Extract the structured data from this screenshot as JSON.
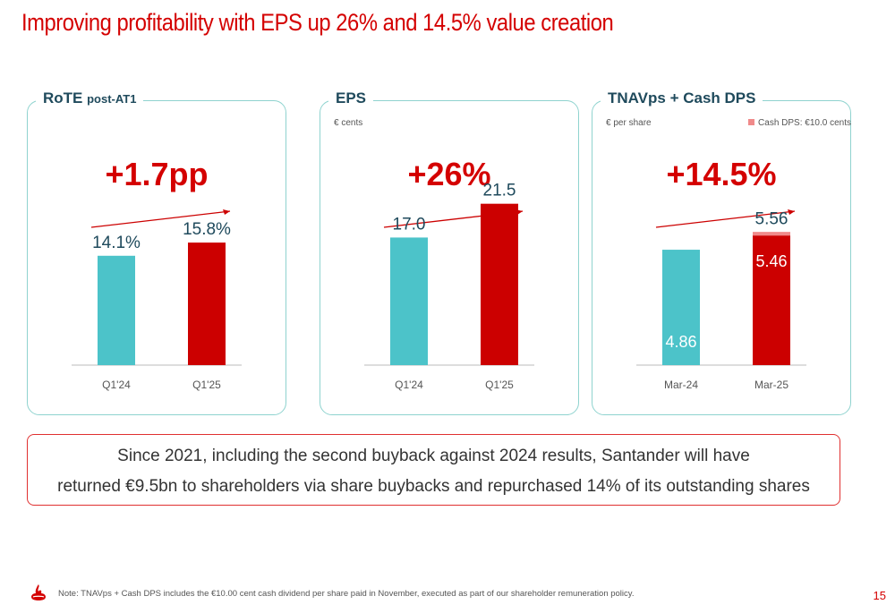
{
  "title": "Improving profitability with EPS up 26% and 14.5% value creation",
  "panels": [
    {
      "title": "RoTE ",
      "title_small": "post-AT1",
      "unit": "",
      "legend": "",
      "growth": "+1.7pp"
    },
    {
      "title": "EPS",
      "title_small": "",
      "unit": "€ cents",
      "legend": "",
      "growth": "+26%"
    },
    {
      "title": "TNAVps + Cash DPS",
      "title_small": "",
      "unit": "€ per share",
      "legend": "Cash DPS: €10.0 cents",
      "growth": "+14.5%"
    }
  ],
  "chart_data": [
    {
      "type": "bar",
      "title": "RoTE post-AT1",
      "categories": [
        "Q1'24",
        "Q1'25"
      ],
      "values": [
        14.1,
        15.8
      ],
      "labels": [
        "14.1%",
        "15.8%"
      ],
      "colors": [
        "#4cc3c9",
        "#cc0000"
      ],
      "ylim": [
        0,
        30
      ]
    },
    {
      "type": "bar",
      "title": "EPS",
      "ylabel": "€ cents",
      "categories": [
        "Q1'24",
        "Q1'25"
      ],
      "values": [
        17.0,
        21.5
      ],
      "labels": [
        "17.0",
        "21.5"
      ],
      "colors": [
        "#4cc3c9",
        "#cc0000"
      ],
      "ylim": [
        0,
        31
      ]
    },
    {
      "type": "bar",
      "title": "TNAVps + Cash DPS",
      "ylabel": "€ per share",
      "categories": [
        "Mar-24",
        "Mar-25"
      ],
      "series": [
        {
          "name": "TNAVps",
          "values": [
            4.86,
            5.46
          ],
          "labels": [
            "4.86",
            "5.46"
          ]
        },
        {
          "name": "Cash DPS: €10.0 cents",
          "values": [
            0,
            0.1
          ]
        }
      ],
      "totals": [
        null,
        5.56
      ],
      "total_labels": [
        "",
        "5.56"
      ],
      "colors": [
        "#4cc3c9",
        "#cc0000",
        "#f08a8a"
      ],
      "ylim": [
        0,
        9.8
      ]
    }
  ],
  "callout": {
    "line1": "Since 2021, including the second buyback against 2024 results, Santander will have",
    "line2": "returned €9.5bn to shareholders via share buybacks and repurchased 14% of its outstanding shares"
  },
  "note": "Note: TNAVps + Cash DPS includes the €10.00 cent cash dividend per share paid in November, executed as part of our shareholder remuneration policy.",
  "page_number": "15",
  "icons": {
    "logo": "santander-flame-icon"
  }
}
